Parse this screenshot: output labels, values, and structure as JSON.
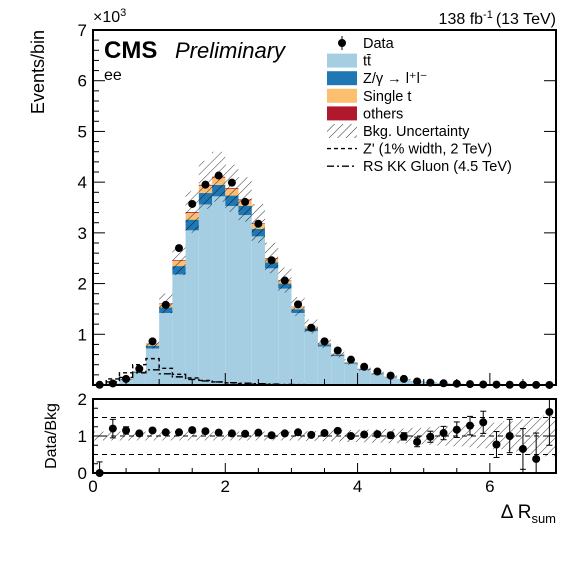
{
  "chart_data": [
    {
      "type": "bar",
      "stacked": true,
      "header": {
        "experiment": "CMS",
        "status": "Preliminary",
        "channel": "ee",
        "lumi": "138 fb",
        "lumi_exp": "-1",
        "energy": "(13 TeV)",
        "y_multiplier_base": "×10",
        "y_multiplier_exp": "3"
      },
      "ylabel": "Events/bin",
      "xlim": [
        0,
        7
      ],
      "ylim": [
        0,
        7000
      ],
      "yticks": [
        0,
        1000,
        2000,
        3000,
        4000,
        5000,
        6000,
        7000
      ],
      "ytick_labels": [
        "",
        "1",
        "2",
        "3",
        "4",
        "5",
        "6",
        "7"
      ],
      "bin_width": 0.2,
      "x": [
        0.1,
        0.3,
        0.5,
        0.7,
        0.9,
        1.1,
        1.3,
        1.5,
        1.7,
        1.9,
        2.1,
        2.3,
        2.5,
        2.7,
        2.9,
        3.1,
        3.3,
        3.5,
        3.7,
        3.9,
        4.1,
        4.3,
        4.5,
        4.7,
        4.9,
        5.1,
        5.3,
        5.5,
        5.7,
        5.9,
        6.1,
        6.3,
        6.5,
        6.7,
        6.9
      ],
      "series": [
        {
          "name": "tt",
          "color": "#a6cee3",
          "values": [
            5,
            25,
            100,
            240,
            720,
            1420,
            2180,
            3050,
            3560,
            3720,
            3530,
            3350,
            2930,
            2300,
            1900,
            1420,
            1060,
            760,
            570,
            420,
            300,
            215,
            155,
            110,
            75,
            55,
            38,
            27,
            19,
            13,
            9,
            6,
            4,
            3,
            2
          ]
        },
        {
          "name": "Z/γ → l⁺l⁻",
          "color": "#1f78b4",
          "values": [
            1,
            4,
            10,
            20,
            55,
            110,
            165,
            210,
            225,
            225,
            205,
            180,
            150,
            120,
            100,
            75,
            55,
            40,
            28,
            20,
            14,
            10,
            7,
            5,
            3,
            2,
            1.5,
            1,
            0.7,
            0.5,
            0.3,
            0.2,
            0.1,
            0.1,
            0.1
          ]
        },
        {
          "name": "Single t",
          "color": "#fdbf6f",
          "values": [
            0.5,
            2,
            6,
            12,
            35,
            70,
            105,
            135,
            145,
            145,
            130,
            115,
            95,
            75,
            62,
            47,
            34,
            24,
            17,
            12,
            8,
            6,
            4,
            3,
            2,
            1.3,
            1,
            0.7,
            0.5,
            0.3,
            0.2,
            0.1,
            0.1,
            0.1,
            0
          ]
        },
        {
          "name": "others",
          "color": "#b2182b",
          "values": [
            0.2,
            0.5,
            1,
            2,
            5,
            9,
            13,
            16,
            17,
            16,
            15,
            13,
            11,
            9,
            7,
            5,
            4,
            3,
            2,
            1.5,
            1,
            0.7,
            0.5,
            0.3,
            0.2,
            0.15,
            0.1,
            0.07,
            0.05,
            0.03,
            0.02,
            0.01,
            0.01,
            0.01,
            0
          ]
        }
      ],
      "uncertainty_rel": 0.12,
      "data": {
        "name": "Data",
        "x": [
          0.1,
          0.3,
          0.5,
          0.7,
          0.9,
          1.1,
          1.3,
          1.5,
          1.7,
          1.9,
          2.1,
          2.3,
          2.5,
          2.7,
          2.9,
          3.1,
          3.3,
          3.5,
          3.7,
          3.9,
          4.1,
          4.3,
          4.5,
          4.7,
          4.9,
          5.1,
          5.3,
          5.5,
          5.7,
          5.9,
          6.1,
          6.3,
          6.5,
          6.7,
          6.9
        ],
        "y": [
          4,
          30,
          120,
          320,
          860,
          1580,
          2700,
          3570,
          3950,
          4130,
          3990,
          3610,
          3180,
          2460,
          2060,
          1590,
          1130,
          860,
          680,
          500,
          360,
          265,
          185,
          120,
          70,
          48,
          34,
          25,
          18,
          11,
          8,
          5,
          3,
          2,
          1
        ]
      },
      "signals": [
        {
          "name": "Z' (1% width, 2 TeV)",
          "style": "dashed",
          "x": [
            0.1,
            0.3,
            0.5,
            0.7,
            0.9,
            1.1,
            1.3,
            1.5,
            1.7,
            1.9,
            2.1,
            2.3,
            2.5,
            2.7,
            2.9,
            3.1,
            3.3,
            3.5,
            3.7,
            3.9,
            4.1,
            4.3,
            4.5,
            4.7,
            4.9,
            5.1,
            5.3,
            5.5,
            5.7,
            5.9,
            6.1,
            6.3,
            6.5,
            6.7,
            6.9
          ],
          "y": [
            5,
            120,
            240,
            400,
            520,
            330,
            210,
            140,
            90,
            60,
            40,
            25,
            15,
            10,
            6,
            4,
            2,
            1,
            1,
            0,
            0,
            0,
            0,
            0,
            0,
            0,
            0,
            0,
            0,
            0,
            0,
            0,
            0,
            0,
            0
          ]
        },
        {
          "name": "RS KK Gluon (4.5 TeV)",
          "style": "dashdot",
          "x": [
            0.1,
            0.3,
            0.5,
            0.7,
            0.9,
            1.1,
            1.3,
            1.5,
            1.7,
            1.9,
            2.1,
            2.3,
            2.5,
            2.7,
            2.9,
            3.1,
            3.3,
            3.5,
            3.7,
            3.9,
            4.1,
            4.3,
            4.5,
            4.7,
            4.9,
            5.1,
            5.3,
            5.5,
            5.7,
            5.9,
            6.1,
            6.3,
            6.5,
            6.7,
            6.9
          ],
          "y": [
            3,
            60,
            150,
            240,
            300,
            220,
            160,
            110,
            80,
            60,
            45,
            35,
            25,
            18,
            12,
            9,
            6,
            4,
            3,
            2,
            1,
            1,
            0,
            0,
            0,
            0,
            0,
            0,
            0,
            0,
            0,
            0,
            0,
            0,
            0
          ]
        }
      ],
      "legend": {
        "placement": "top-right",
        "entries": [
          {
            "label": "Data",
            "kind": "data"
          },
          {
            "label": "tt̄",
            "kind": "fill",
            "color": "#a6cee3"
          },
          {
            "label": "Z/γ → l⁺l⁻",
            "kind": "fill",
            "color": "#1f78b4"
          },
          {
            "label": "Single t",
            "kind": "fill",
            "color": "#fdbf6f"
          },
          {
            "label": "others",
            "kind": "fill",
            "color": "#b2182b"
          },
          {
            "label": "Bkg. Uncertainty",
            "kind": "hatch"
          },
          {
            "label": "Z' (1% width, 2 TeV)",
            "kind": "dashed"
          },
          {
            "label": "RS KK Gluon (4.5 TeV)",
            "kind": "dashdot"
          }
        ]
      }
    },
    {
      "type": "scatter",
      "xlabel": "Δ R",
      "xlabel_sub": "sum",
      "ylabel": "Data/Bkg",
      "xlim": [
        0,
        7
      ],
      "ylim": [
        0,
        2
      ],
      "xticks": [
        0,
        2,
        4,
        6
      ],
      "xtick_labels": [
        "0",
        "2",
        "4",
        "6"
      ],
      "yticks": [
        0,
        1,
        2
      ],
      "ytick_labels": [
        "0",
        "1",
        "2"
      ],
      "reference_lines": [
        0.5,
        1.0,
        1.5
      ],
      "uncertainty_rel": [
        0.12,
        0.12,
        0.12,
        0.12,
        0.12,
        0.12,
        0.12,
        0.12,
        0.12,
        0.12,
        0.12,
        0.12,
        0.12,
        0.12,
        0.12,
        0.12,
        0.13,
        0.14,
        0.15,
        0.16,
        0.17,
        0.18,
        0.19,
        0.2,
        0.22,
        0.24,
        0.26,
        0.28,
        0.3,
        0.33,
        0.36,
        0.4,
        0.45,
        0.5,
        0.55
      ],
      "x": [
        0.1,
        0.3,
        0.5,
        0.7,
        0.9,
        1.1,
        1.3,
        1.5,
        1.7,
        1.9,
        2.1,
        2.3,
        2.5,
        2.7,
        2.9,
        3.1,
        3.3,
        3.5,
        3.7,
        3.9,
        4.1,
        4.3,
        4.5,
        4.7,
        4.9,
        5.1,
        5.3,
        5.5,
        5.7,
        5.9,
        6.1,
        6.3,
        6.5,
        6.7,
        6.9
      ],
      "y": [
        0.0,
        1.2,
        1.15,
        1.07,
        1.15,
        1.1,
        1.1,
        1.16,
        1.13,
        1.09,
        1.07,
        1.06,
        1.09,
        1.02,
        1.07,
        1.1,
        1.03,
        1.08,
        1.14,
        1.0,
        1.04,
        1.05,
        1.02,
        0.99,
        0.84,
        0.98,
        1.08,
        1.17,
        1.28,
        1.37,
        0.77,
        1.0,
        0.65,
        0.38,
        1.65
      ],
      "err": [
        0.3,
        0.25,
        0.1,
        0.06,
        0.04,
        0.03,
        0.02,
        0.02,
        0.02,
        0.02,
        0.02,
        0.02,
        0.02,
        0.02,
        0.02,
        0.03,
        0.03,
        0.04,
        0.04,
        0.05,
        0.06,
        0.07,
        0.08,
        0.1,
        0.13,
        0.15,
        0.18,
        0.21,
        0.25,
        0.3,
        0.35,
        0.45,
        0.55,
        0.7,
        0.9
      ]
    }
  ]
}
